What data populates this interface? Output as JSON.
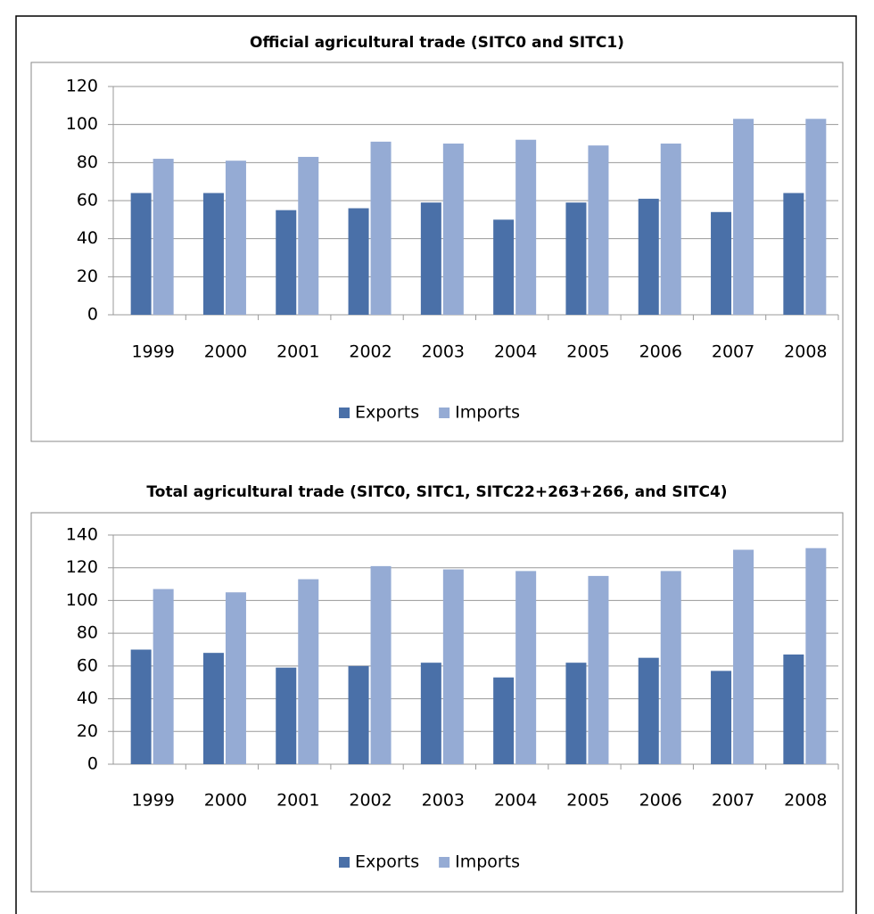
{
  "chart_data": [
    {
      "type": "bar",
      "title": "Official agricultural trade (SITC0 and SITC1)",
      "categories": [
        "1999",
        "2000",
        "2001",
        "2002",
        "2003",
        "2004",
        "2005",
        "2006",
        "2007",
        "2008"
      ],
      "series": [
        {
          "name": "Exports",
          "color": "#4a70a8",
          "values": [
            64,
            64,
            55,
            56,
            59,
            50,
            59,
            61,
            54,
            64
          ]
        },
        {
          "name": "Imports",
          "color": "#95abd4",
          "values": [
            82,
            81,
            83,
            91,
            90,
            92,
            89,
            90,
            103,
            103
          ]
        }
      ],
      "ylim": [
        0,
        120
      ],
      "yticks": [
        0,
        20,
        40,
        60,
        80,
        100,
        120
      ],
      "grid": true,
      "legend": "bottom"
    },
    {
      "type": "bar",
      "title": "Total agricultural trade (SITC0, SITC1, SITC22+263+266, and SITC4)",
      "categories": [
        "1999",
        "2000",
        "2001",
        "2002",
        "2003",
        "2004",
        "2005",
        "2006",
        "2007",
        "2008"
      ],
      "series": [
        {
          "name": "Exports",
          "color": "#4a70a8",
          "values": [
            70,
            68,
            59,
            60,
            62,
            53,
            62,
            65,
            57,
            67
          ]
        },
        {
          "name": "Imports",
          "color": "#95abd4",
          "values": [
            107,
            105,
            113,
            121,
            119,
            118,
            115,
            118,
            131,
            132
          ]
        }
      ],
      "ylim": [
        0,
        140
      ],
      "yticks": [
        0,
        20,
        40,
        60,
        80,
        100,
        120,
        140
      ],
      "grid": true,
      "legend": "bottom"
    }
  ]
}
